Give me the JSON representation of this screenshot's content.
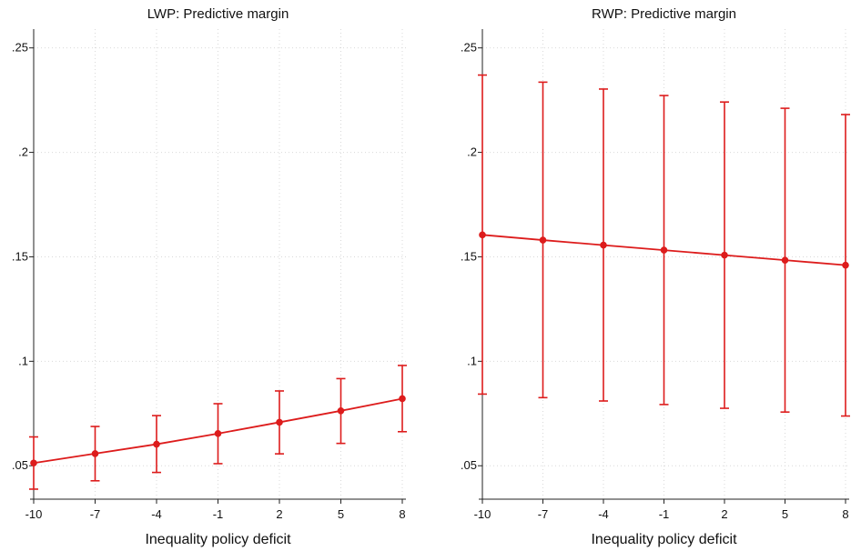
{
  "chart_data": [
    {
      "type": "line",
      "title": "LWP: Predictive margin",
      "xlabel": "Inequality policy deficit",
      "ylabel": "",
      "x": [
        -10,
        -7,
        -4,
        -1,
        2,
        5,
        8
      ],
      "x_ticks": [
        "-10",
        "-7",
        "-4",
        "-1",
        "2",
        "5",
        "8"
      ],
      "y_ticks": [
        ".05",
        ".1",
        ".15",
        ".2",
        ".25"
      ],
      "y_tick_values": [
        0.05,
        0.1,
        0.15,
        0.2,
        0.25
      ],
      "xlim": [
        -10,
        8
      ],
      "ylim": [
        0.034,
        0.259
      ],
      "grid": true,
      "series": [
        {
          "values": [
            0.0513,
            0.0558,
            0.0603,
            0.0654,
            0.0708,
            0.0763,
            0.0821
          ],
          "ci_low": [
            0.0388,
            0.0428,
            0.0468,
            0.051,
            0.0557,
            0.0607,
            0.0663
          ],
          "ci_high": [
            0.0638,
            0.0688,
            0.074,
            0.0797,
            0.0858,
            0.0917,
            0.098
          ]
        }
      ],
      "color": "#dd1c1c"
    },
    {
      "type": "line",
      "title": "RWP: Predictive margin",
      "xlabel": "Inequality policy deficit",
      "ylabel": "",
      "x": [
        -10,
        -7,
        -4,
        -1,
        2,
        5,
        8
      ],
      "x_ticks": [
        "-10",
        "-7",
        "-4",
        "-1",
        "2",
        "5",
        "8"
      ],
      "y_ticks": [
        ".05",
        ".1",
        ".15",
        ".2",
        ".25"
      ],
      "y_tick_values": [
        0.05,
        0.1,
        0.15,
        0.2,
        0.25
      ],
      "xlim": [
        -10,
        8
      ],
      "ylim": [
        0.034,
        0.259
      ],
      "grid": true,
      "series": [
        {
          "values": [
            0.1605,
            0.158,
            0.1556,
            0.1532,
            0.1508,
            0.1484,
            0.146
          ],
          "ci_low": [
            0.0843,
            0.0826,
            0.081,
            0.0793,
            0.0775,
            0.0757,
            0.0738
          ],
          "ci_high": [
            0.237,
            0.2336,
            0.2303,
            0.2272,
            0.2241,
            0.2211,
            0.2181
          ]
        }
      ],
      "color": "#dd1c1c"
    }
  ]
}
